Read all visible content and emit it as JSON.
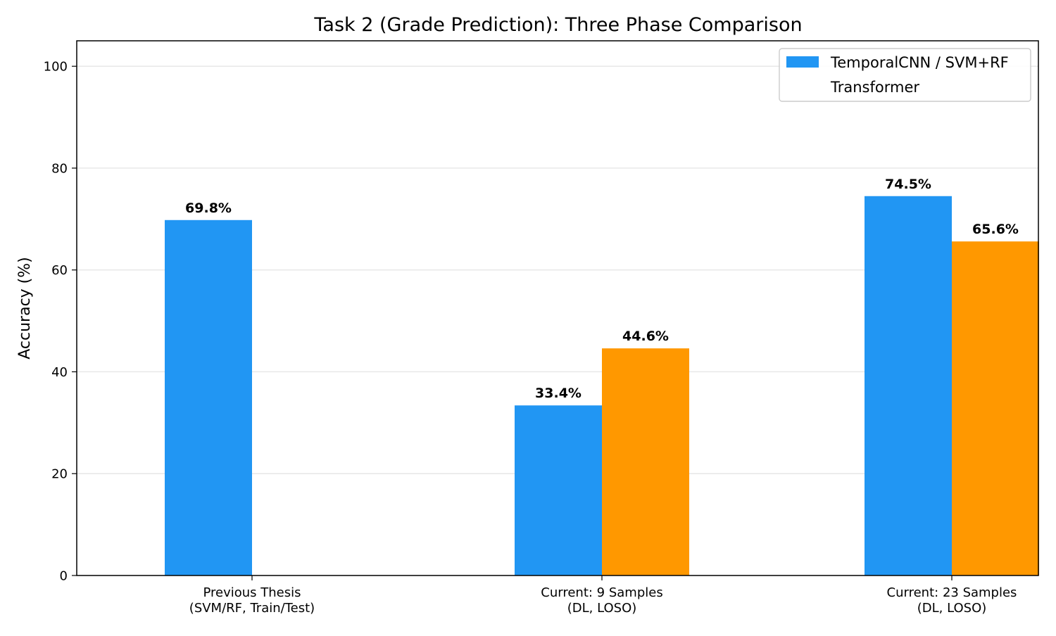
{
  "chart_data": {
    "type": "bar",
    "title": "Task 2 (Grade Prediction): Three Phase Comparison",
    "xlabel": "",
    "ylabel": "Accuracy (%)",
    "ylim": [
      0,
      105
    ],
    "yticks": [
      0,
      20,
      40,
      60,
      80,
      100
    ],
    "grid": "horizontal",
    "legend_position": "top-right",
    "categories": [
      [
        "Previous Thesis",
        "(SVM/RF, Train/Test)"
      ],
      [
        "Current: 9 Samples",
        "(DL, LOSO)"
      ],
      [
        "Current: 23 Samples",
        "(DL, LOSO)"
      ]
    ],
    "series": [
      {
        "name": "TemporalCNN / SVM+RF",
        "color": "#2196F3",
        "values": [
          69.8,
          33.4,
          74.5
        ],
        "labels": [
          "69.8%",
          "33.4%",
          "74.5%"
        ]
      },
      {
        "name": "Transformer",
        "color": "#FF9800",
        "values": [
          null,
          44.6,
          65.6
        ],
        "labels": [
          null,
          "44.6%",
          "65.6%"
        ]
      }
    ]
  }
}
